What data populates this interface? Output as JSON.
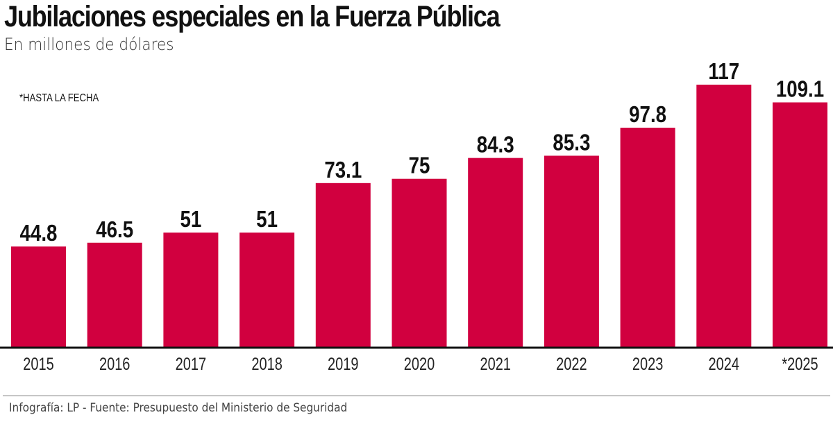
{
  "header": {
    "title": "Jubilaciones especiales en la Fuerza Pública",
    "subtitle": "En millones de dólares",
    "note": "*HASTA LA FECHA"
  },
  "footer": {
    "source": "Infografía: LP - Fuente: Presupuesto del Ministerio de Seguridad"
  },
  "colors": {
    "bar": "#d1003f",
    "axis": "#111111",
    "text": "#111111"
  },
  "chart_data": {
    "type": "bar",
    "title": "Jubilaciones especiales en la Fuerza Pública",
    "subtitle": "En millones de dólares",
    "xlabel": "",
    "ylabel": "",
    "categories": [
      "2015",
      "2016",
      "2017",
      "2018",
      "2019",
      "2020",
      "2021",
      "2022",
      "2023",
      "2024",
      "*2025"
    ],
    "values": [
      44.8,
      46.5,
      51,
      51,
      73.1,
      75,
      84.3,
      85.3,
      97.8,
      117,
      109.1
    ],
    "value_labels": [
      "44.8",
      "46.5",
      "51",
      "51",
      "73.1",
      "75",
      "84.3",
      "85.3",
      "97.8",
      "117",
      "109.1"
    ],
    "ylim": [
      0,
      117
    ],
    "grid": false,
    "legend": "none",
    "annotations": [
      "*HASTA LA FECHA"
    ]
  }
}
